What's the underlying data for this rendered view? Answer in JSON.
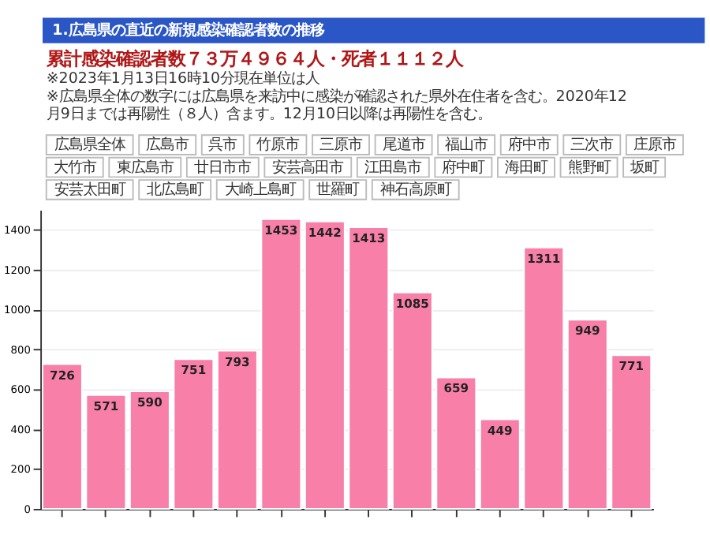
{
  "chart_data": {
    "type": "bar",
    "title": "1.広島県の直近の新規感染確認者数の推移",
    "subtitle": "累計感染確認者数７３万４９６４人・死者１１１２人",
    "annotations": [
      "※2023年1月13日16時10分現在単位は人",
      "※広島県全体の数字には広島県を来訪中に感染が確認された県外在住者を含む。2020年12月9日までは再陽性（８人）含ます。12月10日以降は再陽性を含む。",
      "広島県全体",
      "広島市",
      "呉市",
      "竹原市",
      "三原市",
      "尾道市",
      "福山市",
      "府中市",
      "三次市",
      "庄原市",
      "大竹市",
      "東広島市",
      "廿日市市",
      "安芸高田市",
      "江田島市",
      "府中町",
      "海田町",
      "熊野町",
      "坂町",
      "安芸太田町",
      "北広島町",
      "大崎上島町",
      "世羅町",
      "神石高原町"
    ],
    "categories": [
      null,
      null,
      null,
      null,
      null,
      null,
      null,
      null,
      null,
      null,
      null,
      null,
      null,
      null
    ],
    "values": [
      726,
      571,
      590,
      751,
      793,
      1453,
      1442,
      1413,
      1085,
      659,
      449,
      1311,
      949,
      771
    ],
    "color": "#f77fa8",
    "ylim": [
      0,
      1500
    ],
    "yticks": [
      0,
      200,
      400,
      600,
      800,
      1000,
      1200,
      1400
    ],
    "grid": "y",
    "data_labels": true,
    "tick_labels": "y"
  }
}
